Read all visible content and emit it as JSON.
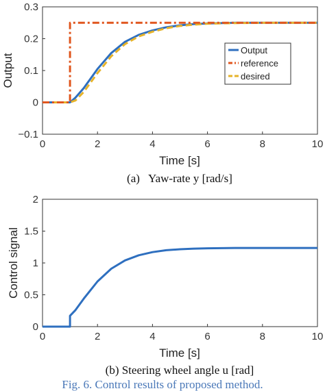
{
  "chart_data": [
    {
      "type": "line",
      "title": "",
      "xlabel": "Time [s]",
      "ylabel": "Output",
      "xlim": [
        0,
        10
      ],
      "ylim": [
        -0.1,
        0.3
      ],
      "xticks": [
        "0",
        "2",
        "4",
        "6",
        "8",
        "10"
      ],
      "yticks": [
        "−0.1",
        "0",
        "0.1",
        "0.2",
        "0.3"
      ],
      "legend": "upper-right, inside",
      "caption": "(a)   Yaw-rate y [rad/s]",
      "series": [
        {
          "name": "Output",
          "color": "#2e6fbf",
          "style": "solid",
          "x": [
            0,
            1.0,
            1.2,
            1.5,
            2.0,
            2.5,
            3.0,
            3.5,
            4.0,
            4.5,
            5.0,
            5.5,
            6.0,
            7.0,
            8.0,
            9.0,
            10.0
          ],
          "y": [
            0,
            0,
            0.015,
            0.045,
            0.105,
            0.155,
            0.19,
            0.212,
            0.226,
            0.236,
            0.242,
            0.246,
            0.248,
            0.25,
            0.25,
            0.25,
            0.25
          ]
        },
        {
          "name": "reference",
          "color": "#e0561e",
          "style": "dash-dot",
          "x": [
            0,
            1.0,
            1.0,
            10.0
          ],
          "y": [
            0,
            0,
            0.25,
            0.25
          ]
        },
        {
          "name": "desired",
          "color": "#e6b32a",
          "style": "dashed",
          "x": [
            0,
            1.0,
            1.2,
            1.5,
            2.0,
            2.5,
            3.0,
            3.5,
            4.0,
            4.5,
            5.0,
            5.5,
            6.0,
            7.0,
            8.0,
            9.0,
            10.0
          ],
          "y": [
            0,
            0,
            0.006,
            0.033,
            0.092,
            0.145,
            0.183,
            0.207,
            0.222,
            0.233,
            0.24,
            0.244,
            0.247,
            0.249,
            0.25,
            0.25,
            0.25
          ]
        }
      ]
    },
    {
      "type": "line",
      "title": "",
      "xlabel": "Time [s]",
      "ylabel": "Control signal",
      "xlim": [
        0,
        10
      ],
      "ylim": [
        0,
        2
      ],
      "xticks": [
        "0",
        "2",
        "4",
        "6",
        "8",
        "10"
      ],
      "yticks": [
        "0",
        "0.5",
        "1",
        "1.5",
        "2"
      ],
      "caption": "(b) Steering wheel angle u [rad]",
      "series": [
        {
          "name": "",
          "color": "#2e6fbf",
          "style": "solid",
          "x": [
            0,
            1.0,
            1.0,
            1.2,
            1.5,
            2.0,
            2.5,
            3.0,
            3.5,
            4.0,
            4.5,
            5.0,
            5.5,
            6.0,
            7.0,
            8.0,
            9.0,
            10.0
          ],
          "y": [
            0,
            0,
            0.17,
            0.26,
            0.44,
            0.71,
            0.91,
            1.04,
            1.12,
            1.17,
            1.2,
            1.215,
            1.225,
            1.23,
            1.235,
            1.235,
            1.235,
            1.235
          ]
        }
      ]
    }
  ],
  "figure_caption": "Fig. 6. Control results of proposed method."
}
